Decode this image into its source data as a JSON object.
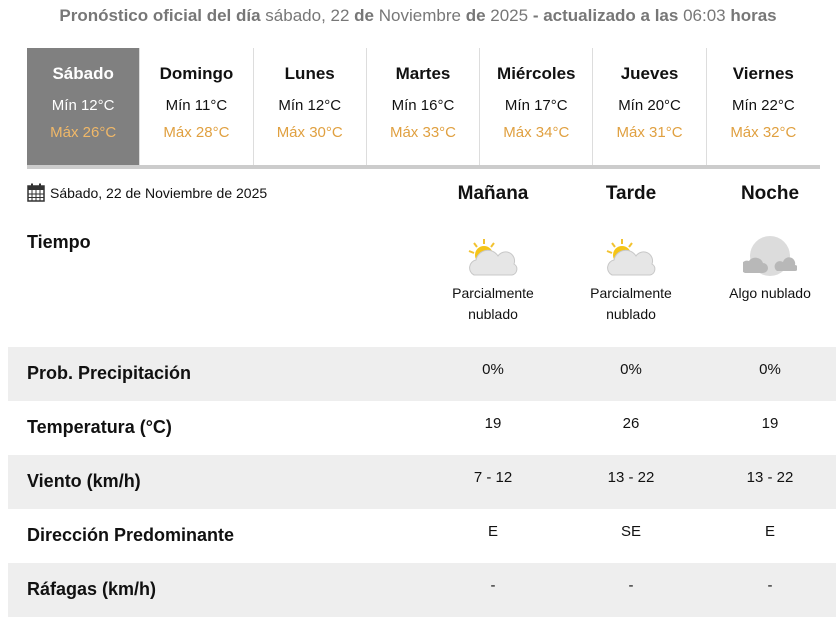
{
  "header": {
    "p1": "Pronóstico oficial del día",
    "p2": "sábado, 22",
    "p3": "de",
    "p4": "Noviembre",
    "p5": "de",
    "p6": "2025",
    "p7": "- actualizado a las",
    "p8": "06:03",
    "p9": "horas"
  },
  "days": [
    {
      "name": "Sábado",
      "min": "Mín 12°C",
      "max": "Máx 26°C",
      "selected": true
    },
    {
      "name": "Domingo",
      "min": "Mín 11°C",
      "max": "Máx 28°C"
    },
    {
      "name": "Lunes",
      "min": "Mín 12°C",
      "max": "Máx 30°C"
    },
    {
      "name": "Martes",
      "min": "Mín 16°C",
      "max": "Máx 33°C"
    },
    {
      "name": "Miércoles",
      "min": "Mín 17°C",
      "max": "Máx 34°C"
    },
    {
      "name": "Jueves",
      "min": "Mín 20°C",
      "max": "Máx 31°C"
    },
    {
      "name": "Viernes",
      "min": "Mín 22°C",
      "max": "Máx 32°C"
    }
  ],
  "date": "Sábado, 22 de Noviembre de 2025",
  "periods": [
    "Mañana",
    "Tarde",
    "Noche"
  ],
  "tiempo_label": "Tiempo",
  "weather": [
    {
      "icon": "partly-cloudy-day-icon",
      "l1": "Parcialmente",
      "l2": "nublado"
    },
    {
      "icon": "partly-cloudy-day-icon",
      "l1": "Parcialmente",
      "l2": "nublado"
    },
    {
      "icon": "partly-cloudy-night-icon",
      "l1": "Algo nublado",
      "l2": ""
    }
  ],
  "rows": [
    {
      "label": "Prob. Precipitación",
      "values": [
        "0%",
        "0%",
        "0%"
      ]
    },
    {
      "label": "Temperatura (°C)",
      "values": [
        "19",
        "26",
        "19"
      ]
    },
    {
      "label": "Viento (km/h)",
      "values": [
        "7 - 12",
        "13 - 22",
        "13 - 22"
      ]
    },
    {
      "label": "Dirección Predominante",
      "values": [
        "E",
        "SE",
        "E"
      ]
    },
    {
      "label": "Ráfagas (km/h)",
      "values": [
        "-",
        "-",
        "-"
      ]
    }
  ],
  "colors": {
    "selected_day_bg": "#808080",
    "max_temp": "#e0a040",
    "row_shade": "#eeeeee"
  }
}
